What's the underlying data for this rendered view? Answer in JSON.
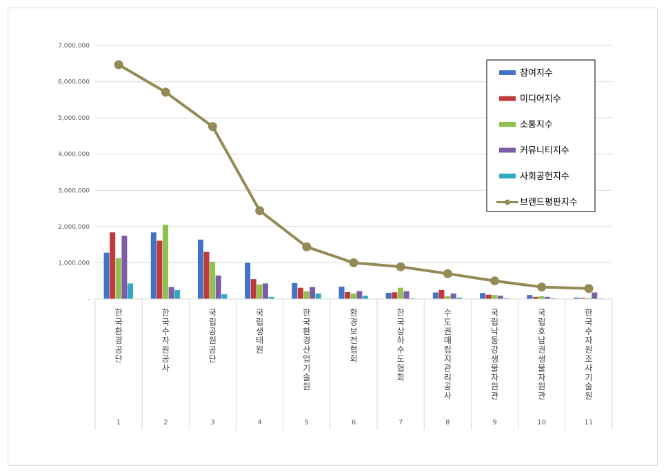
{
  "chart_data": {
    "type": "bar",
    "yticks": [
      "7,000,000",
      "6,000,000",
      "5,000,000",
      "4,000,000",
      "3,000,000",
      "2,000,000",
      "1,000,000",
      "-"
    ],
    "ylim": [
      0,
      7000000
    ],
    "grid": true,
    "legend_position": "top-right",
    "ranks": [
      "1",
      "2",
      "3",
      "4",
      "5",
      "6",
      "7",
      "8",
      "9",
      "10",
      "11"
    ],
    "categories": [
      "한국환경공단",
      "한국수자원공사",
      "국립공원공단",
      "국립생태원",
      "한국환경산업기술원",
      "환경보전협회",
      "한국상하수도협회",
      "수도권매립지관리공사",
      "국립낙동강생물자원관",
      "국립호남권생물자원관",
      "한국수자원조사기술원"
    ],
    "series": [
      {
        "name": "참여지수",
        "color": "#4472c4",
        "values": [
          1280000,
          1840000,
          1640000,
          1000000,
          440000,
          340000,
          170000,
          180000,
          165000,
          110000,
          40000
        ]
      },
      {
        "name": "미디어지수",
        "color": "#c0393b",
        "values": [
          1840000,
          1610000,
          1300000,
          550000,
          310000,
          190000,
          185000,
          250000,
          120000,
          60000,
          30000
        ]
      },
      {
        "name": "소통지수",
        "color": "#92c050",
        "values": [
          1130000,
          2050000,
          1030000,
          400000,
          210000,
          155000,
          310000,
          75000,
          110000,
          75000,
          25000
        ]
      },
      {
        "name": "커뮤니티지수",
        "color": "#7b5ea7",
        "values": [
          1750000,
          330000,
          650000,
          430000,
          330000,
          220000,
          215000,
          150000,
          90000,
          60000,
          180000
        ]
      },
      {
        "name": "사회공헌지수",
        "color": "#31a9c1",
        "values": [
          430000,
          250000,
          130000,
          60000,
          150000,
          90000,
          20000,
          40000,
          20000,
          20000,
          15000
        ]
      }
    ],
    "line": {
      "name": "브랜드평판지수",
      "color": "#948a54",
      "values": [
        6470000,
        5710000,
        4760000,
        2440000,
        1440000,
        1000000,
        890000,
        700000,
        500000,
        330000,
        290000
      ]
    }
  }
}
